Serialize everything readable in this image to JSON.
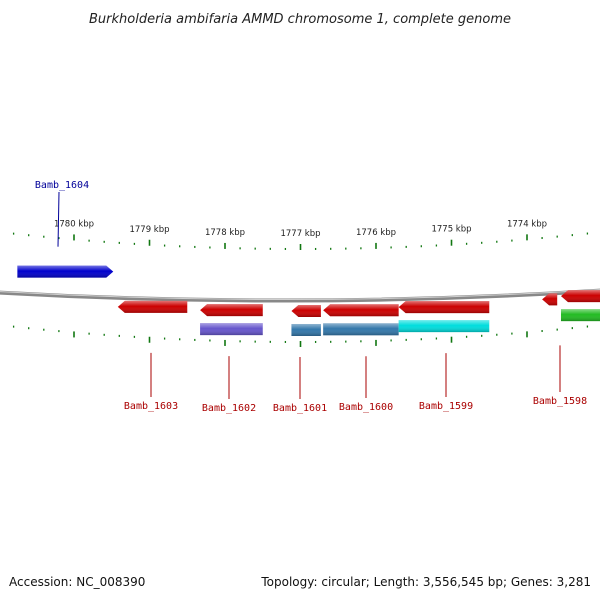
{
  "title": "Burkholderia ambifaria AMMD chromosome 1, complete genome",
  "accession": "Accession: NC_008390",
  "topology": "Topology: circular; Length: 3,556,545 bp; Genes: 3,281",
  "scale": {
    "unit": "kbp",
    "positions": [
      1780,
      1779,
      1778,
      1777,
      1776,
      1775,
      1774
    ],
    "labels": [
      "1780 kbp",
      "1779 kbp",
      "1778 kbp",
      "1777 kbp",
      "1776 kbp",
      "1775 kbp",
      "1774 kbp"
    ]
  },
  "genes": [
    {
      "label": "Bamb_1604",
      "strand": "top",
      "color": "#0000cc",
      "start_kbp": 1780.75,
      "end_kbp": 1779.48
    },
    {
      "label": "Bamb_1603",
      "strand": "bottom",
      "color": "#cc0000",
      "start_kbp": 1779.42,
      "end_kbp": 1778.5
    },
    {
      "label": "Bamb_1602",
      "strand": "bottom",
      "color": "#cc0000",
      "start_kbp": 1778.33,
      "end_kbp": 1777.5
    },
    {
      "label": "Bamb_1601",
      "strand": "bottom",
      "color": "#cc0000",
      "start_kbp": 1777.12,
      "end_kbp": 1776.73
    },
    {
      "label": "Bamb_1600",
      "strand": "bottom",
      "color": "#cc0000",
      "start_kbp": 1776.7,
      "end_kbp": 1775.7
    },
    {
      "label": "Bamb_1599",
      "strand": "bottom",
      "color": "#cc0000",
      "start_kbp": 1775.7,
      "end_kbp": 1774.5
    },
    {
      "label": "Bamb_1598",
      "strand": "bottom",
      "color": "#cc0000",
      "start_kbp": 1773.8,
      "end_kbp": 1773.6
    },
    {
      "label": "",
      "strand": "bottom",
      "color": "#cc0000",
      "start_kbp": 1773.55,
      "end_kbp": 1773.0
    }
  ],
  "domains": [
    {
      "color": "#6655cc",
      "start_kbp": 1778.33,
      "end_kbp": 1777.5
    },
    {
      "color": "#3377aa",
      "start_kbp": 1777.12,
      "end_kbp": 1776.73
    },
    {
      "color": "#3377aa",
      "start_kbp": 1776.7,
      "end_kbp": 1775.7
    },
    {
      "color": "#00dddd",
      "start_kbp": 1775.7,
      "end_kbp": 1774.5
    },
    {
      "color": "#22bb22",
      "start_kbp": 1773.55,
      "end_kbp": 1773.0
    }
  ],
  "colors": {
    "backbone": "#888888",
    "ticks": "#117711",
    "top_label": "#000099",
    "bottom_label": "#aa0000"
  }
}
